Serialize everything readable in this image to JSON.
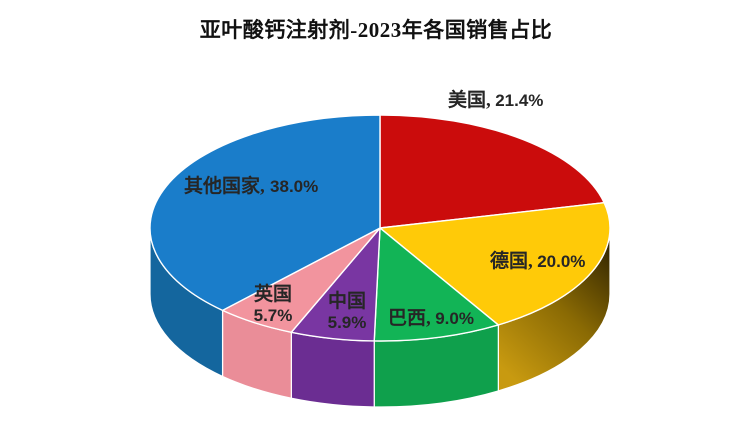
{
  "chart_data": {
    "type": "pie",
    "projection": "3d",
    "title": "亚叶酸钙注射剂-2023年各国销售占比",
    "unit": "percent",
    "direction": "clockwise",
    "start_angle_deg": 0,
    "legend": "none",
    "slices": [
      {
        "key": "us",
        "category": "美国",
        "value": 21.4,
        "color": "#cb0c0c",
        "side_color": "#9a0a0a"
      },
      {
        "key": "de",
        "category": "德国",
        "value": 20.0,
        "color": "#ffca08",
        "side_color": "#a97f06",
        "side_gradient": [
          "#2e2200",
          "#8a6a04",
          "#c89a10"
        ]
      },
      {
        "key": "br",
        "category": "巴西",
        "value": 9.0,
        "color": "#12b456",
        "side_color": "#0fa04c"
      },
      {
        "key": "cn",
        "category": "中国",
        "value": 5.9,
        "color": "#7936a2",
        "side_color": "#6b2d92"
      },
      {
        "key": "uk",
        "category": "英国",
        "value": 5.7,
        "color": "#f2949e",
        "side_color": "#ea8d98"
      },
      {
        "key": "others",
        "category": "其他国家",
        "value": 38.0,
        "color": "#1a7dca",
        "side_color": "#14669e"
      }
    ]
  },
  "labels": {
    "us": {
      "name": "美国,",
      "pct": "21.4%"
    },
    "de": {
      "name": "德国,",
      "pct": "20.0%"
    },
    "br": {
      "name": "巴西,",
      "pct": "9.0%"
    },
    "cn": {
      "name": "中国",
      "pct": "5.9%"
    },
    "uk": {
      "name": "英国",
      "pct": "5.7%"
    },
    "others": {
      "name": "其他国家,",
      "pct": "38.0%"
    }
  }
}
